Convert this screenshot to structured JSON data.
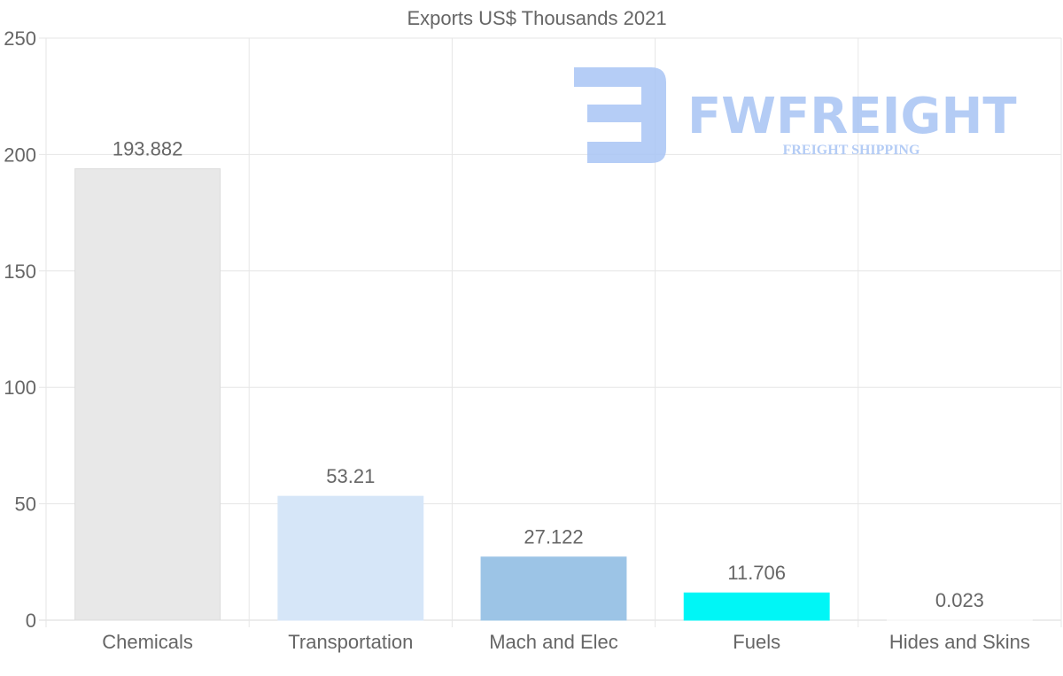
{
  "chart_data": {
    "type": "bar",
    "title": "Exports US$ Thousands 2021",
    "categories": [
      "Chemicals",
      "Transportation",
      "Mach and Elec",
      "Fuels",
      "Hides and Skins"
    ],
    "values": [
      193.882,
      53.21,
      27.122,
      11.706,
      0.023
    ],
    "value_labels": [
      "193.882",
      "53.21",
      "27.122",
      "11.706",
      "0.023"
    ],
    "colors": [
      "#e8e8e8",
      "#d6e6f8",
      "#9cc4e6",
      "#00f6f6",
      "#f2f2f2"
    ],
    "ylim": [
      0,
      250
    ],
    "yticks": [
      0,
      50,
      100,
      150,
      200,
      250
    ],
    "xlabel": "",
    "ylabel": "",
    "grid": true
  },
  "watermark": {
    "brand": "FWFREIGHT",
    "tagline": "FREIGHT SHIPPING",
    "color": "#a8c4f4"
  }
}
